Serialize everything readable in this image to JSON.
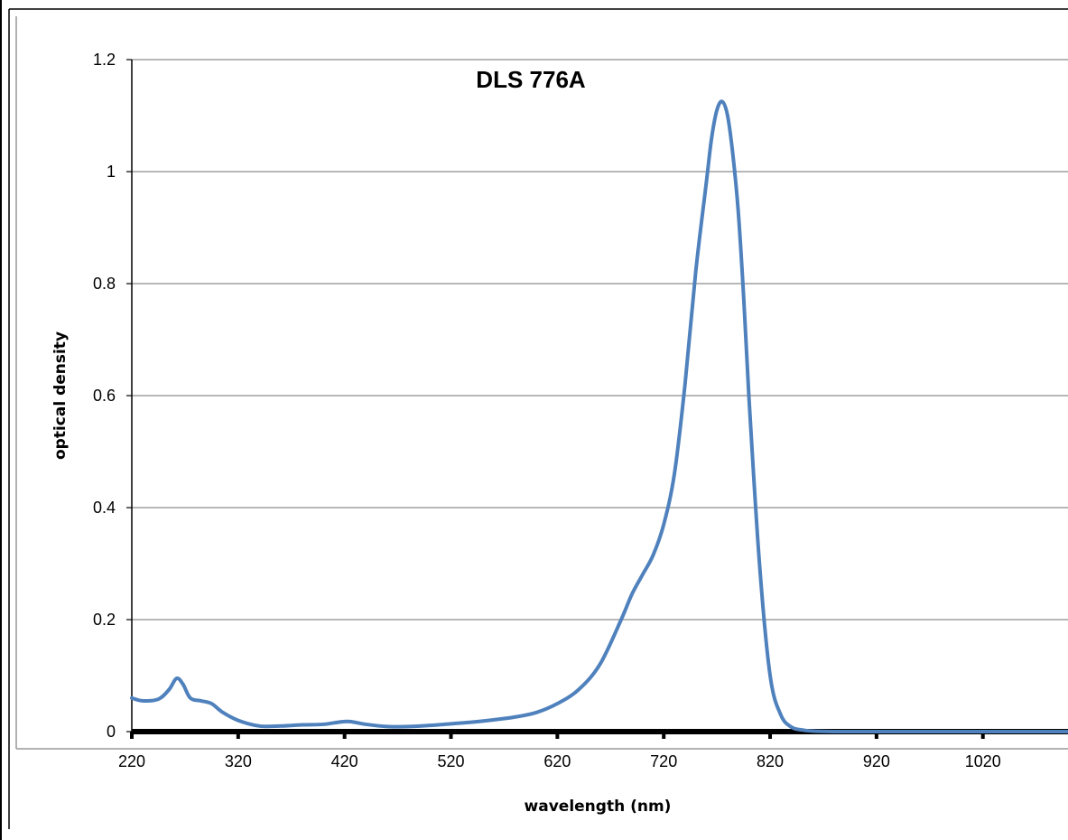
{
  "chart_data": {
    "type": "line",
    "title": "DLS 776A",
    "xlabel": "wavelength (nm)",
    "ylabel": "optical density",
    "xlim": [
      220,
      1100
    ],
    "ylim": [
      0,
      1.2
    ],
    "x_ticks": [
      220,
      320,
      420,
      520,
      620,
      720,
      820,
      920,
      1020
    ],
    "y_ticks": [
      0,
      0.2,
      0.4,
      0.6,
      0.8,
      1,
      1.2
    ],
    "y_tick_labels": [
      "0",
      "0.2",
      "0.4",
      "0.6",
      "0.8",
      "1",
      "1.2"
    ],
    "grid": "horizontal",
    "legend": "none",
    "line_color": "#4f81bd",
    "series": [
      {
        "x": [
          220,
          230,
          245,
          255,
          262,
          268,
          275,
          285,
          295,
          305,
          320,
          340,
          360,
          380,
          400,
          415,
          425,
          440,
          460,
          480,
          500,
          520,
          540,
          560,
          580,
          600,
          620,
          640,
          660,
          680,
          690,
          700,
          710,
          720,
          730,
          740,
          750,
          760,
          765,
          770,
          775,
          780,
          785,
          790,
          795,
          800,
          810,
          820,
          830,
          840,
          850,
          860,
          880,
          900,
          950,
          1000,
          1050,
          1100
        ],
        "y": [
          0.06,
          0.055,
          0.058,
          0.075,
          0.095,
          0.085,
          0.06,
          0.055,
          0.05,
          0.035,
          0.02,
          0.01,
          0.01,
          0.012,
          0.013,
          0.017,
          0.018,
          0.013,
          0.009,
          0.009,
          0.011,
          0.014,
          0.017,
          0.021,
          0.026,
          0.034,
          0.05,
          0.075,
          0.12,
          0.2,
          0.245,
          0.28,
          0.315,
          0.37,
          0.46,
          0.62,
          0.82,
          0.98,
          1.06,
          1.11,
          1.125,
          1.1,
          1.03,
          0.93,
          0.78,
          0.6,
          0.3,
          0.1,
          0.03,
          0.008,
          0.003,
          0.001,
          0.0,
          0.0,
          0.0,
          0.0,
          0.0,
          0.0
        ]
      }
    ]
  }
}
